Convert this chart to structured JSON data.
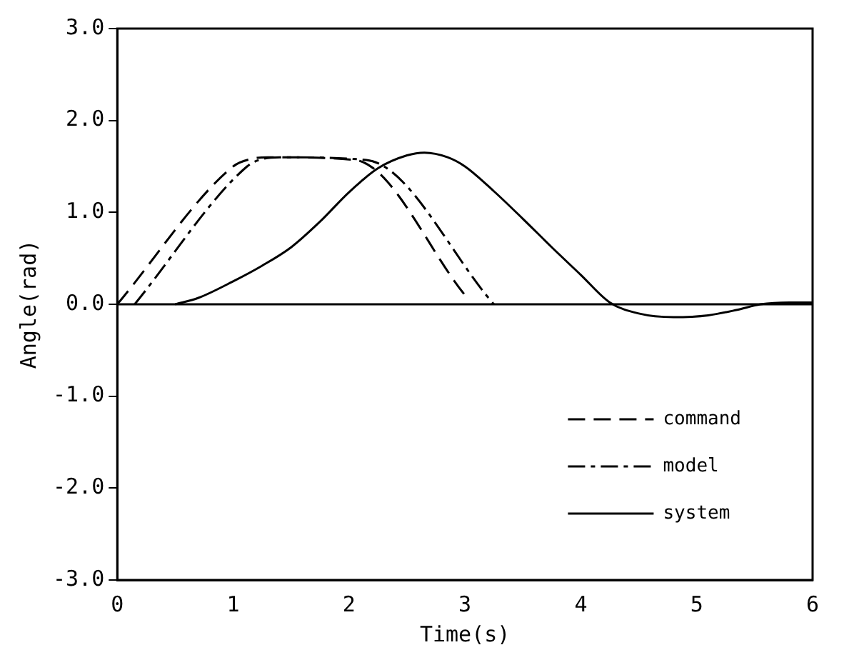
{
  "chart_data": {
    "type": "line",
    "xlabel": "Time(s)",
    "ylabel": "Angle(rad)",
    "xlim": [
      0,
      6
    ],
    "xticks": [
      0,
      1,
      2,
      3,
      4,
      5,
      6
    ],
    "ylim": [
      -3,
      3
    ],
    "yticks": [
      {
        "value": -3,
        "label": "-3.0"
      },
      {
        "value": -2,
        "label": "-2.0"
      },
      {
        "value": -1,
        "label": "-1.0"
      },
      {
        "value": 0,
        "label": "0.0"
      },
      {
        "value": 1,
        "label": "1.0"
      },
      {
        "value": 2,
        "label": "2.0"
      },
      {
        "value": 3,
        "label": "3.0"
      }
    ],
    "grid": false,
    "legend": "bottom right",
    "marker": "none",
    "ref_lines": [
      {
        "axis": "y",
        "value": 0,
        "color": "#000000",
        "line_style": "solid"
      }
    ],
    "series": [
      {
        "name": "command",
        "color": "#000000",
        "line_style": "dashed",
        "x": [
          0,
          1.0,
          1.15,
          1.3,
          2.05,
          3.0
        ],
        "values": [
          0,
          1.5,
          1.58,
          1.6,
          1.57,
          0.1
        ]
      },
      {
        "name": "model",
        "color": "#000000",
        "line_style": "dashdot",
        "x": [
          0.15,
          1.12,
          1.25,
          1.4,
          2.15,
          3.25
        ],
        "values": [
          0,
          1.5,
          1.58,
          1.6,
          1.57,
          0
        ]
      },
      {
        "name": "system",
        "color": "#000000",
        "line_style": "solid",
        "x": [
          0.5,
          0.7,
          1.0,
          1.25,
          1.5,
          1.75,
          2.0,
          2.25,
          2.5,
          2.65,
          2.85,
          3.0,
          3.25,
          3.5,
          3.75,
          4.0,
          4.25,
          4.5,
          4.8,
          5.1,
          5.35,
          5.55,
          5.8,
          6.0
        ],
        "values": [
          0,
          0.07,
          0.25,
          0.42,
          0.62,
          0.9,
          1.22,
          1.48,
          1.62,
          1.65,
          1.6,
          1.5,
          1.23,
          0.93,
          0.62,
          0.32,
          0.02,
          -0.1,
          -0.14,
          -0.12,
          -0.06,
          0,
          0.02,
          0.02
        ]
      }
    ]
  }
}
